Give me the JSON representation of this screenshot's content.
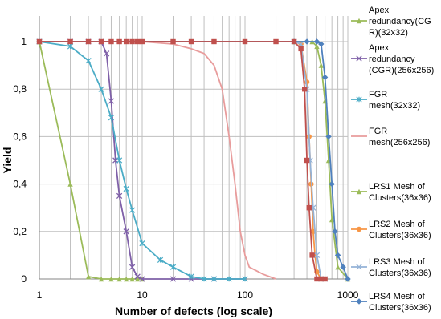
{
  "chart_data": {
    "type": "line",
    "title": "",
    "xlabel": "Number of defects (log scale)",
    "ylabel": "Yield",
    "xscale": "log",
    "xlim": [
      1,
      1000
    ],
    "ylim": [
      0,
      1.1
    ],
    "grid": true,
    "legend_position": "right",
    "x_tick_labels": [
      "1",
      "10",
      "100",
      "1000"
    ],
    "y_tick_labels": [
      "0",
      "0,2",
      "0,4",
      "0,6",
      "0,8",
      "1"
    ],
    "series": [
      {
        "name_lines": [
          "Apex",
          "redundancy(CG",
          "R)(32x32)"
        ],
        "color": "#9bbb59",
        "marker": "triangle",
        "points": [
          [
            1,
            1
          ],
          [
            2,
            0.4
          ],
          [
            3,
            0.01
          ],
          [
            4,
            0
          ],
          [
            5,
            0
          ],
          [
            6,
            0
          ],
          [
            7,
            0
          ],
          [
            8,
            0
          ],
          [
            9,
            0
          ],
          [
            10,
            0
          ]
        ]
      },
      {
        "name_lines": [
          "Apex",
          "redundancy",
          "(CGR)(256x256)"
        ],
        "color": "#7f60a8",
        "marker": "x",
        "points": [
          [
            1,
            1
          ],
          [
            2,
            1
          ],
          [
            3,
            1
          ],
          [
            4,
            1
          ],
          [
            4.5,
            0.95
          ],
          [
            5,
            0.75
          ],
          [
            5.5,
            0.5
          ],
          [
            6,
            0.35
          ],
          [
            7,
            0.2
          ],
          [
            8,
            0.05
          ],
          [
            9,
            0.01
          ],
          [
            10,
            0
          ],
          [
            20,
            0
          ],
          [
            30,
            0
          ],
          [
            50,
            0
          ],
          [
            100,
            0
          ]
        ]
      },
      {
        "name_lines": [
          "FGR",
          "mesh(32x32)"
        ],
        "color": "#4bacc6",
        "marker": "star",
        "points": [
          [
            1,
            1
          ],
          [
            2,
            0.98
          ],
          [
            3,
            0.92
          ],
          [
            4,
            0.8
          ],
          [
            5,
            0.68
          ],
          [
            6,
            0.5
          ],
          [
            7,
            0.38
          ],
          [
            8,
            0.29
          ],
          [
            10,
            0.15
          ],
          [
            15,
            0.08
          ],
          [
            20,
            0.05
          ],
          [
            30,
            0.01
          ],
          [
            40,
            0
          ],
          [
            50,
            0
          ],
          [
            70,
            0
          ],
          [
            100,
            0
          ]
        ]
      },
      {
        "name_lines": [
          "FGR",
          "mesh(256x256)"
        ],
        "color": "#e89c9c",
        "marker": "none",
        "points": [
          [
            1,
            1
          ],
          [
            10,
            1
          ],
          [
            20,
            0.99
          ],
          [
            30,
            0.97
          ],
          [
            40,
            0.95
          ],
          [
            50,
            0.9
          ],
          [
            60,
            0.8
          ],
          [
            70,
            0.6
          ],
          [
            80,
            0.4
          ],
          [
            90,
            0.2
          ],
          [
            100,
            0.1
          ],
          [
            110,
            0.05
          ],
          [
            150,
            0.02
          ],
          [
            200,
            0
          ]
        ]
      },
      {
        "name_lines": [
          "LRS1 Mesh of",
          "Clusters(36x36)"
        ],
        "color": "#9bbb59",
        "marker": "triangle",
        "points": [
          [
            1,
            1
          ],
          [
            300,
            1
          ],
          [
            450,
            1
          ],
          [
            500,
            0.98
          ],
          [
            550,
            0.9
          ],
          [
            600,
            0.75
          ],
          [
            650,
            0.5
          ],
          [
            700,
            0.25
          ],
          [
            800,
            0.05
          ],
          [
            1000,
            0
          ]
        ]
      },
      {
        "name_lines": [
          "LRS2 Mesh of",
          "Clusters(36x36)"
        ],
        "color": "#f79646",
        "marker": "circle",
        "points": [
          [
            1,
            1
          ],
          [
            300,
            1
          ],
          [
            350,
            0.99
          ],
          [
            400,
            0.83
          ],
          [
            420,
            0.6
          ],
          [
            440,
            0.4
          ],
          [
            460,
            0.2
          ],
          [
            480,
            0.1
          ],
          [
            500,
            0.03
          ],
          [
            550,
            0
          ],
          [
            600,
            0
          ]
        ]
      },
      {
        "name_lines": [
          "LRS3 Mesh of",
          "Clusters(36x36)"
        ],
        "color": "#95b3d7",
        "marker": "x",
        "points": [
          [
            1,
            1
          ],
          [
            300,
            1
          ],
          [
            350,
            0.99
          ],
          [
            400,
            0.8
          ],
          [
            430,
            0.5
          ],
          [
            460,
            0.3
          ],
          [
            500,
            0.1
          ],
          [
            550,
            0
          ],
          [
            600,
            0
          ]
        ]
      },
      {
        "name_lines": [
          "LRS4 Mesh of",
          "Clusters(36x36)"
        ],
        "color": "#4f81bd",
        "marker": "diamond",
        "points": [
          [
            1,
            1
          ],
          [
            300,
            1
          ],
          [
            400,
            1
          ],
          [
            500,
            1
          ],
          [
            550,
            0.99
          ],
          [
            600,
            0.85
          ],
          [
            650,
            0.6
          ],
          [
            700,
            0.4
          ],
          [
            750,
            0.2
          ],
          [
            800,
            0.1
          ],
          [
            900,
            0.05
          ],
          [
            1000,
            0
          ]
        ]
      },
      {
        "name_lines": [],
        "color": "#c0504d",
        "marker": "square",
        "points": [
          [
            1,
            1
          ],
          [
            2,
            1
          ],
          [
            3,
            1
          ],
          [
            4,
            1
          ],
          [
            5,
            1
          ],
          [
            6,
            1
          ],
          [
            7,
            1
          ],
          [
            8,
            1
          ],
          [
            9,
            1
          ],
          [
            10,
            1
          ],
          [
            20,
            1
          ],
          [
            30,
            1
          ],
          [
            50,
            1
          ],
          [
            100,
            1
          ],
          [
            200,
            1
          ],
          [
            300,
            1
          ],
          [
            350,
            0.97
          ],
          [
            380,
            0.8
          ],
          [
            400,
            0.5
          ],
          [
            420,
            0.3
          ],
          [
            450,
            0.1
          ],
          [
            500,
            0
          ],
          [
            550,
            0
          ],
          [
            600,
            0
          ]
        ]
      }
    ]
  }
}
